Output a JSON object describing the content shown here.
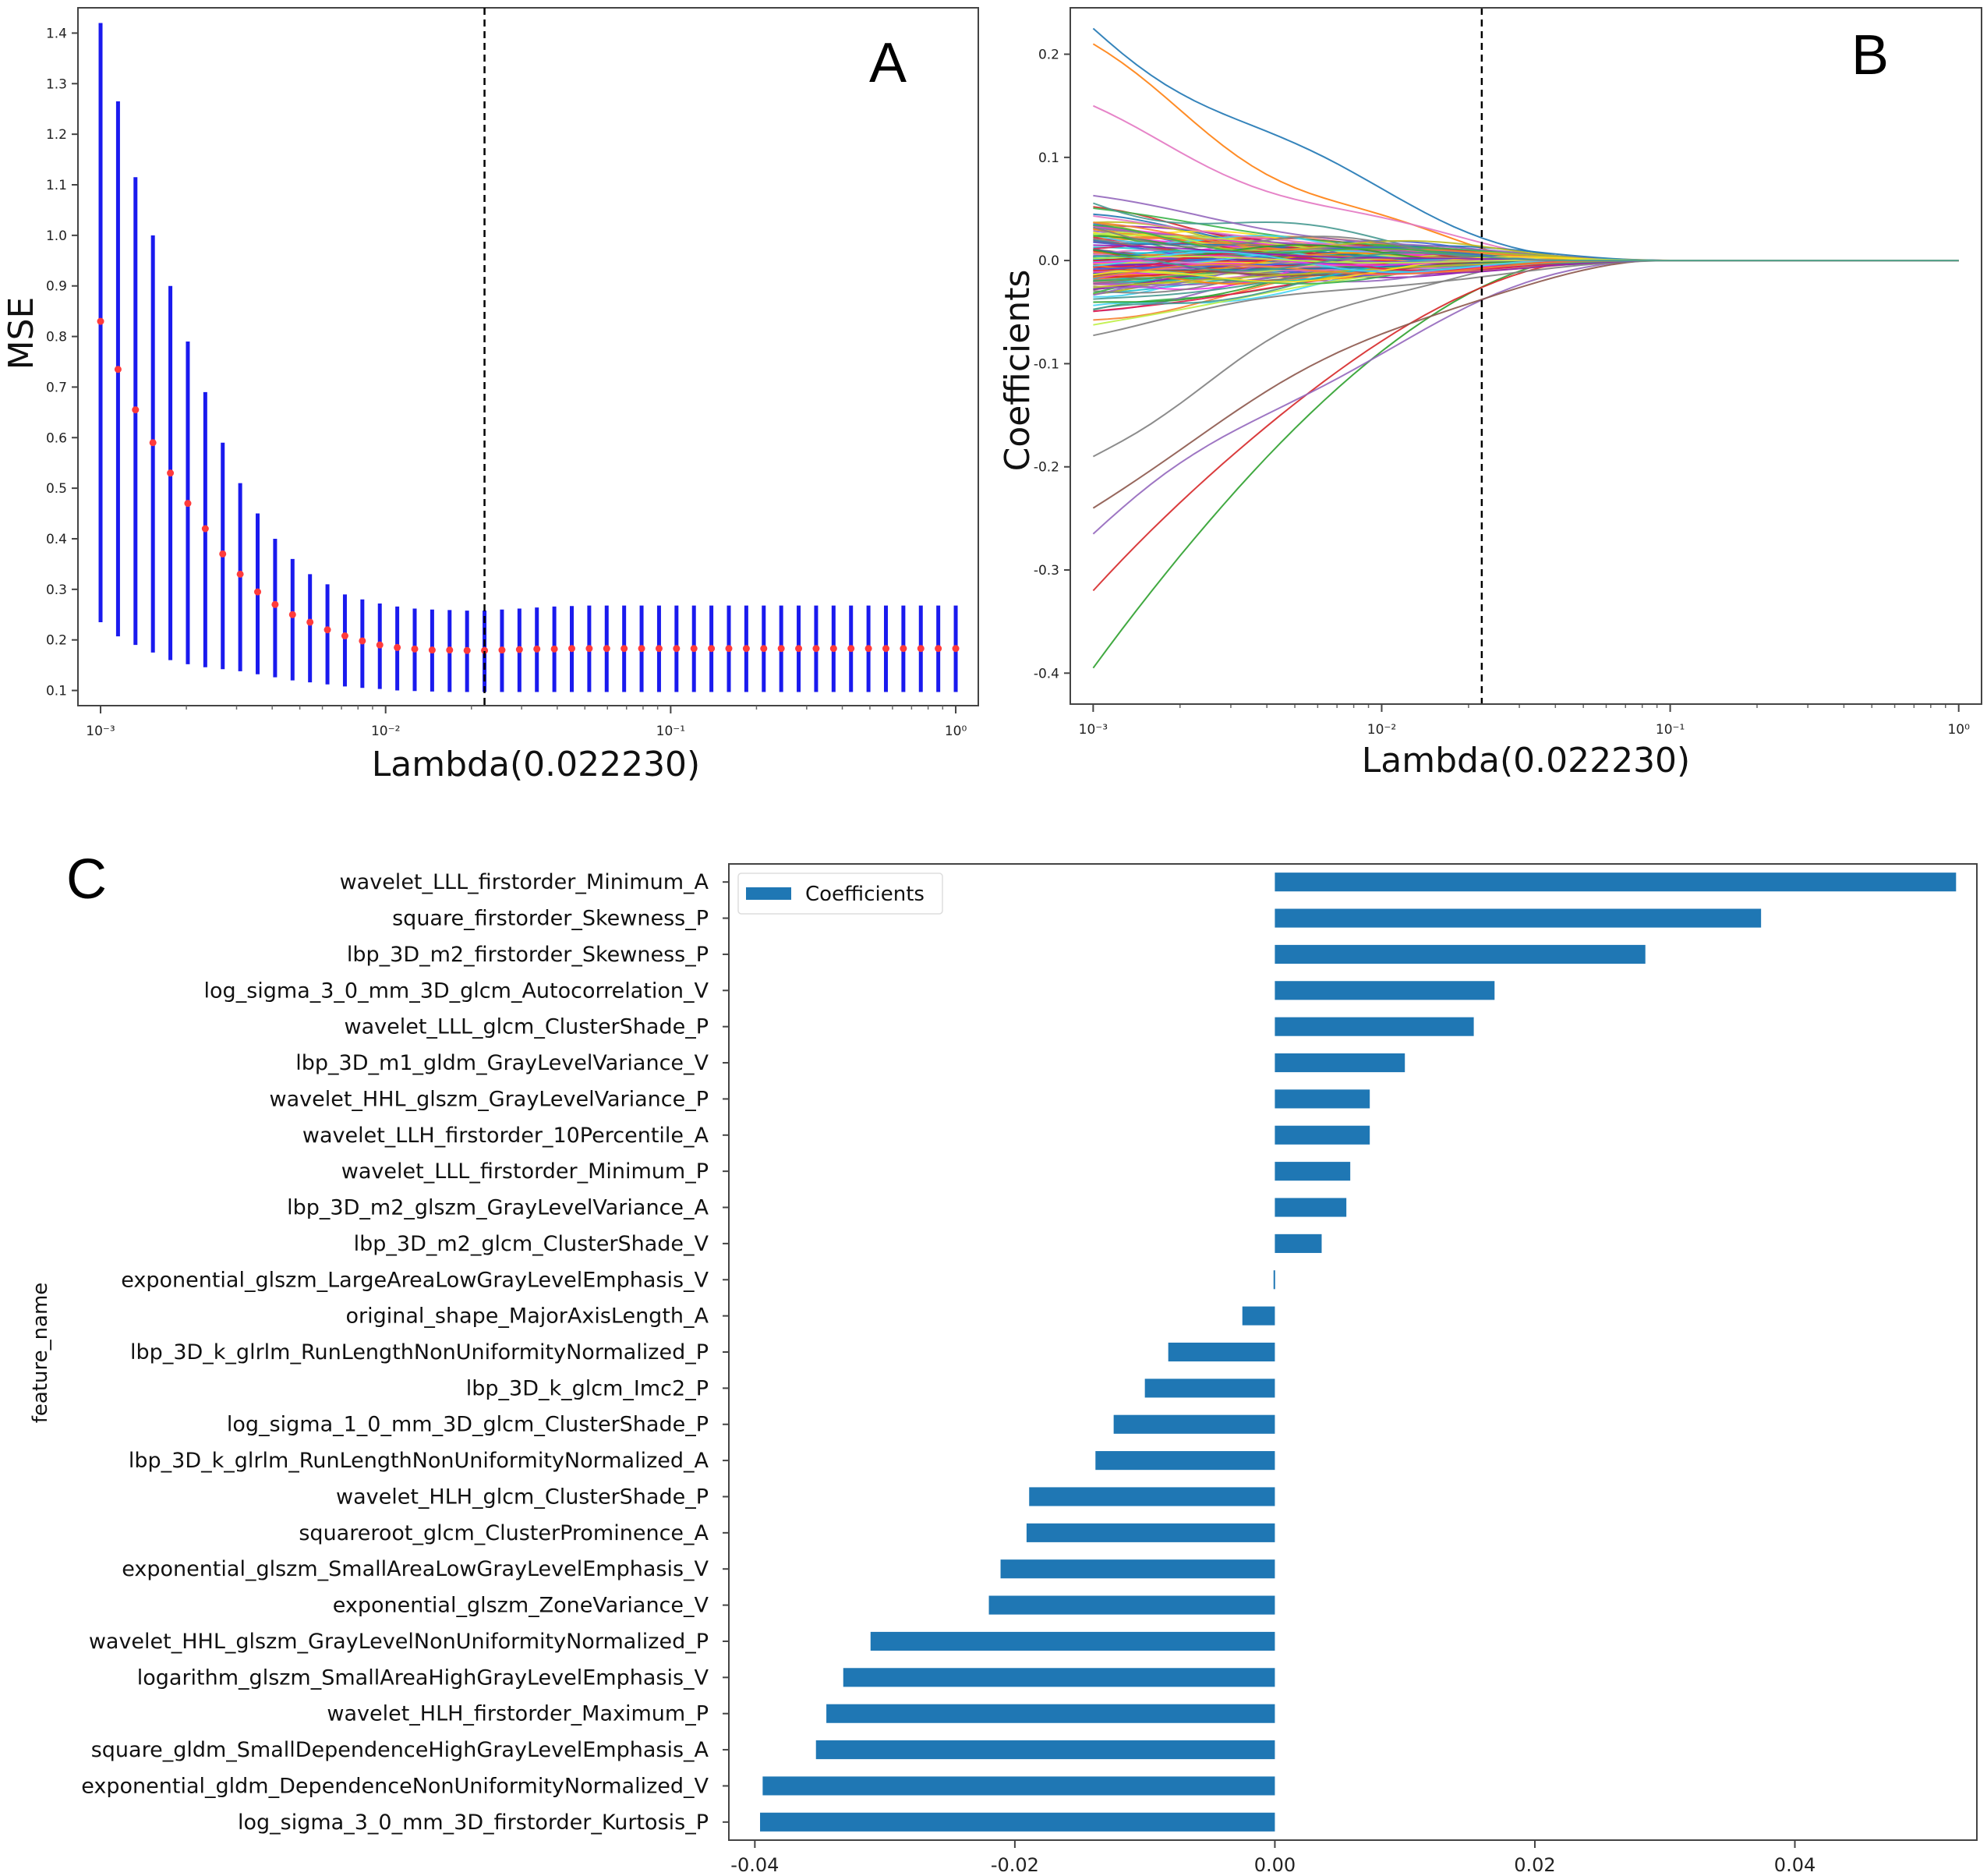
{
  "chart_data": [
    {
      "id": "A",
      "panel_label": "A",
      "type": "scatter",
      "subtype": "errorbar",
      "xscale": "log",
      "xlabel": "Lambda(0.022230)",
      "ylabel": "MSE",
      "xlim": [
        0.000833,
        1.2
      ],
      "ylim": [
        0.07,
        1.45
      ],
      "xticks": [
        {
          "value": 0.001,
          "label": "10⁻³"
        },
        {
          "value": 0.01,
          "label": "10⁻²"
        },
        {
          "value": 0.1,
          "label": "10⁻¹"
        },
        {
          "value": 1,
          "label": "10⁰"
        }
      ],
      "yticks": [
        "0.1",
        "0.2",
        "0.3",
        "0.4",
        "0.5",
        "0.6",
        "0.7",
        "0.8",
        "0.9",
        "1.0",
        "1.1",
        "1.2",
        "1.3",
        "1.4"
      ],
      "optimal_lambda": 0.02223,
      "colors": {
        "errorbar": "#1a1aee",
        "mean": "#ff3b3b",
        "vline": "#000000"
      },
      "mean": [
        0.83,
        0.735,
        0.655,
        0.59,
        0.53,
        0.47,
        0.42,
        0.37,
        0.33,
        0.295,
        0.27,
        0.25,
        0.235,
        0.22,
        0.208,
        0.198,
        0.19,
        0.185,
        0.182,
        0.18,
        0.18,
        0.179,
        0.179,
        0.18,
        0.181,
        0.182,
        0.182,
        0.183,
        0.183,
        0.183,
        0.183,
        0.183,
        0.183,
        0.183,
        0.183,
        0.183,
        0.183,
        0.183,
        0.183,
        0.183,
        0.183,
        0.183,
        0.183,
        0.183,
        0.183,
        0.183,
        0.183,
        0.183,
        0.183,
        0.183
      ],
      "upper": [
        1.42,
        1.265,
        1.115,
        1.0,
        0.9,
        0.79,
        0.69,
        0.59,
        0.51,
        0.45,
        0.4,
        0.36,
        0.33,
        0.31,
        0.29,
        0.28,
        0.272,
        0.266,
        0.262,
        0.26,
        0.259,
        0.258,
        0.258,
        0.26,
        0.262,
        0.264,
        0.266,
        0.267,
        0.268,
        0.268,
        0.268,
        0.268,
        0.268,
        0.268,
        0.268,
        0.268,
        0.268,
        0.268,
        0.268,
        0.268,
        0.268,
        0.268,
        0.268,
        0.268,
        0.268,
        0.268,
        0.268,
        0.268,
        0.268,
        0.268
      ],
      "lower": [
        0.235,
        0.207,
        0.19,
        0.175,
        0.16,
        0.152,
        0.146,
        0.142,
        0.138,
        0.132,
        0.126,
        0.12,
        0.116,
        0.112,
        0.108,
        0.105,
        0.103,
        0.1,
        0.099,
        0.098,
        0.097,
        0.097,
        0.097,
        0.097,
        0.097,
        0.097,
        0.097,
        0.097,
        0.097,
        0.097,
        0.097,
        0.097,
        0.097,
        0.097,
        0.097,
        0.097,
        0.097,
        0.097,
        0.097,
        0.097,
        0.097,
        0.097,
        0.097,
        0.097,
        0.097,
        0.097,
        0.097,
        0.097,
        0.097,
        0.097
      ]
    },
    {
      "id": "B",
      "panel_label": "B",
      "type": "line",
      "subtype": "coefficient-path",
      "xscale": "log",
      "xlabel": "Lambda(0.022230)",
      "ylabel": "Coefficients",
      "xlim": [
        0.000833,
        1.2
      ],
      "ylim": [
        -0.43,
        0.245
      ],
      "xticks": [
        {
          "value": 0.001,
          "label": "10⁻³"
        },
        {
          "value": 0.01,
          "label": "10⁻²"
        },
        {
          "value": 0.1,
          "label": "10⁻¹"
        },
        {
          "value": 1,
          "label": "10⁰"
        }
      ],
      "yticks": [
        {
          "value": 0.2,
          "label": "0.2"
        },
        {
          "value": 0.1,
          "label": "0.1"
        },
        {
          "value": 0.0,
          "label": "0.0"
        },
        {
          "value": -0.1,
          "label": "-0.1"
        },
        {
          "value": -0.2,
          "label": "-0.2"
        },
        {
          "value": -0.3,
          "label": "-0.3"
        },
        {
          "value": -0.4,
          "label": "-0.4"
        }
      ],
      "optimal_lambda": 0.02223,
      "path_start_lambda": 0.001,
      "path_end_lambda": 1,
      "n_paths": 160,
      "highlighted_start_values": [
        0.225,
        0.21,
        -0.395,
        -0.32,
        -0.265,
        -0.24,
        0.15,
        -0.19
      ],
      "path_palette": [
        "#1f77b4",
        "#ff7f0e",
        "#2ca02c",
        "#d62728",
        "#9467bd",
        "#8c564b",
        "#e377c2",
        "#7f7f7f",
        "#bcbd22",
        "#17becf",
        "#e6194b",
        "#3cb44b",
        "#ffe119",
        "#4363d8",
        "#f58231",
        "#911eb4",
        "#42d4f4",
        "#f032e6",
        "#bfef45",
        "#469990"
      ],
      "colors": {
        "vline": "#000000"
      }
    },
    {
      "id": "C",
      "panel_label": "C",
      "type": "bar",
      "orientation": "horizontal",
      "xlabel": "",
      "ylabel": "feature_name",
      "xlim": [
        -0.042,
        0.054
      ],
      "xticks": [
        {
          "value": -0.04,
          "label": "-0.04"
        },
        {
          "value": -0.02,
          "label": "-0.02"
        },
        {
          "value": 0.0,
          "label": "0.00"
        },
        {
          "value": 0.02,
          "label": "0.02"
        },
        {
          "value": 0.04,
          "label": "0.04"
        }
      ],
      "legend": {
        "label": "Coefficients",
        "location": "top-left"
      },
      "bar_color": "#1f77b4",
      "categories": [
        "wavelet_LLL_firstorder_Minimum_A",
        "square_firstorder_Skewness_P",
        "lbp_3D_m2_firstorder_Skewness_P",
        "log_sigma_3_0_mm_3D_glcm_Autocorrelation_V",
        "wavelet_LLL_glcm_ClusterShade_P",
        "lbp_3D_m1_gldm_GrayLevelVariance_V",
        "wavelet_HHL_glszm_GrayLevelVariance_P",
        "wavelet_LLH_firstorder_10Percentile_A",
        "wavelet_LLL_firstorder_Minimum_P",
        "lbp_3D_m2_glszm_GrayLevelVariance_A",
        "lbp_3D_m2_glcm_ClusterShade_V",
        "exponential_glszm_LargeAreaLowGrayLevelEmphasis_V",
        "original_shape_MajorAxisLength_A",
        "lbp_3D_k_glrlm_RunLengthNonUniformityNormalized_P",
        "lbp_3D_k_glcm_Imc2_P",
        "log_sigma_1_0_mm_3D_glcm_ClusterShade_P",
        "lbp_3D_k_glrlm_RunLengthNonUniformityNormalized_A",
        "wavelet_HLH_glcm_ClusterShade_P",
        "squareroot_glcm_ClusterProminence_A",
        "exponential_glszm_SmallAreaLowGrayLevelEmphasis_V",
        "exponential_glszm_ZoneVariance_V",
        "wavelet_HHL_glszm_GrayLevelNonUniformityNormalized_P",
        "logarithm_glszm_SmallAreaHighGrayLevelEmphasis_V",
        "wavelet_HLH_firstorder_Maximum_P",
        "square_gldm_SmallDependenceHighGrayLevelEmphasis_A",
        "exponential_gldm_DependenceNonUniformityNormalized_V",
        "log_sigma_3_0_mm_3D_firstorder_Kurtosis_P"
      ],
      "values": [
        0.0524,
        0.0374,
        0.0285,
        0.0169,
        0.0153,
        0.01,
        0.0073,
        0.0073,
        0.0058,
        0.0055,
        0.0036,
        -0.0001,
        -0.0025,
        -0.0082,
        -0.01,
        -0.0124,
        -0.0138,
        -0.0189,
        -0.0191,
        -0.0211,
        -0.022,
        -0.0311,
        -0.0332,
        -0.0345,
        -0.0353,
        -0.0394,
        -0.0396
      ]
    }
  ]
}
